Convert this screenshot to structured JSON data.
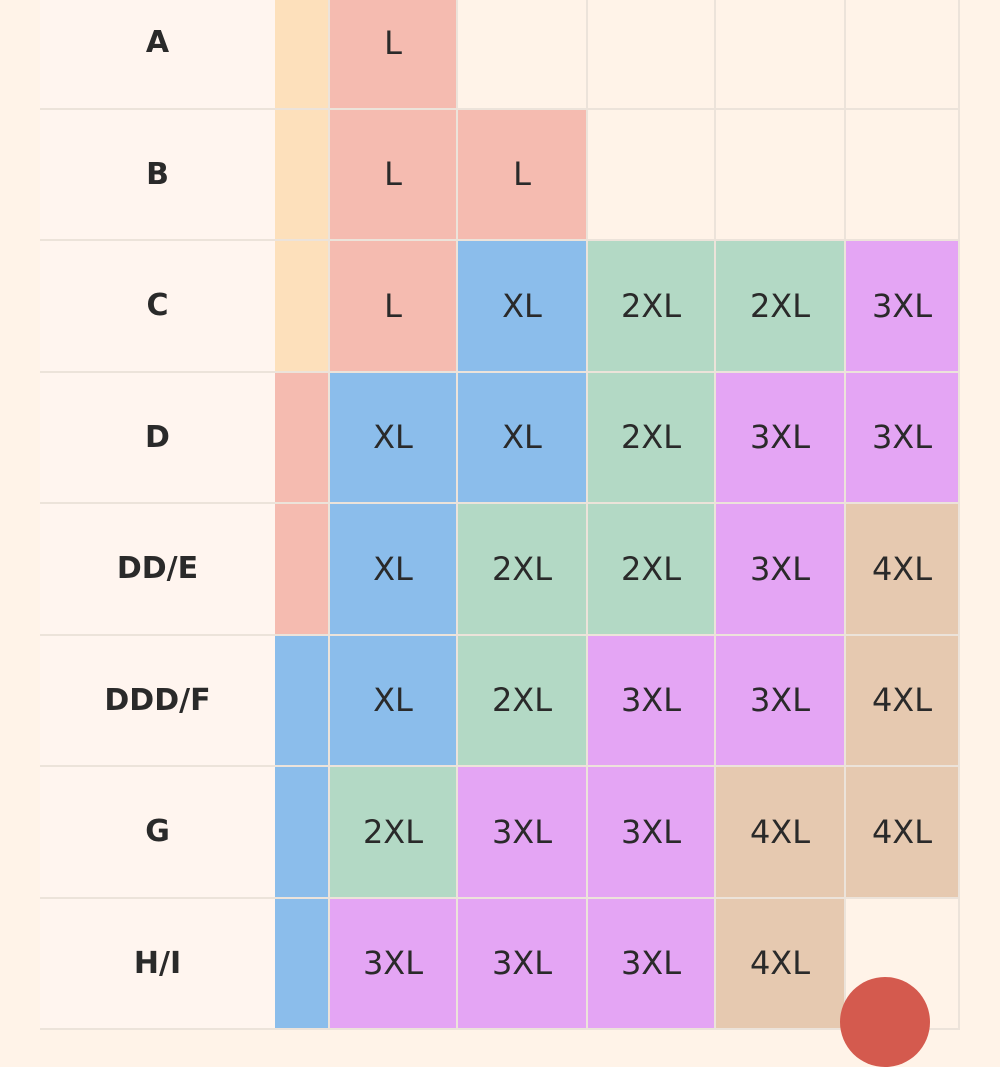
{
  "table": {
    "rows": [
      {
        "label": "A",
        "edge": {
          "color": "#fde0bb"
        },
        "cells": [
          {
            "text": "L",
            "color": "#f5bbb0"
          },
          null,
          null,
          null,
          null
        ]
      },
      {
        "label": "B",
        "edge": {
          "color": "#fde0bb"
        },
        "cells": [
          {
            "text": "L",
            "color": "#f5bbb0"
          },
          {
            "text": "L",
            "color": "#f5bbb0"
          },
          null,
          null,
          null
        ]
      },
      {
        "label": "C",
        "edge": {
          "color": "#fde0bb"
        },
        "cells": [
          {
            "text": "L",
            "color": "#f5bbb0"
          },
          {
            "text": "XL",
            "color": "#8bbdeb"
          },
          {
            "text": "2XL",
            "color": "#b3d9c5"
          },
          {
            "text": "2XL",
            "color": "#b3d9c5"
          },
          {
            "text": "3XL",
            "color": "#e4a5f4"
          }
        ]
      },
      {
        "label": "D",
        "edge": {
          "color": "#f5bbb0"
        },
        "cells": [
          {
            "text": "XL",
            "color": "#8bbdeb"
          },
          {
            "text": "XL",
            "color": "#8bbdeb"
          },
          {
            "text": "2XL",
            "color": "#b3d9c5"
          },
          {
            "text": "3XL",
            "color": "#e4a5f4"
          },
          {
            "text": "3XL",
            "color": "#e4a5f4"
          }
        ]
      },
      {
        "label": "DD/E",
        "edge": {
          "color": "#f5bbb0"
        },
        "cells": [
          {
            "text": "XL",
            "color": "#8bbdeb"
          },
          {
            "text": "2XL",
            "color": "#b3d9c5"
          },
          {
            "text": "2XL",
            "color": "#b3d9c5"
          },
          {
            "text": "3XL",
            "color": "#e4a5f4"
          },
          {
            "text": "4XL",
            "color": "#e6c9b0"
          }
        ]
      },
      {
        "label": "DDD/F",
        "edge": {
          "color": "#8bbdeb"
        },
        "cells": [
          {
            "text": "XL",
            "color": "#8bbdeb"
          },
          {
            "text": "2XL",
            "color": "#b3d9c5"
          },
          {
            "text": "3XL",
            "color": "#e4a5f4"
          },
          {
            "text": "3XL",
            "color": "#e4a5f4"
          },
          {
            "text": "4XL",
            "color": "#e6c9b0"
          }
        ]
      },
      {
        "label": "G",
        "edge": {
          "color": "#8bbdeb"
        },
        "cells": [
          {
            "text": "2XL",
            "color": "#b3d9c5"
          },
          {
            "text": "3XL",
            "color": "#e4a5f4"
          },
          {
            "text": "3XL",
            "color": "#e4a5f4"
          },
          {
            "text": "4XL",
            "color": "#e6c9b0"
          },
          {
            "text": "4XL",
            "color": "#e6c9b0"
          }
        ]
      },
      {
        "label": "H/I",
        "edge": {
          "color": "#8bbdeb"
        },
        "cells": [
          {
            "text": "3XL",
            "color": "#e4a5f4"
          },
          {
            "text": "3XL",
            "color": "#e4a5f4"
          },
          {
            "text": "3XL",
            "color": "#e4a5f4"
          },
          {
            "text": "4XL",
            "color": "#e6c9b0"
          },
          null
        ]
      }
    ]
  }
}
